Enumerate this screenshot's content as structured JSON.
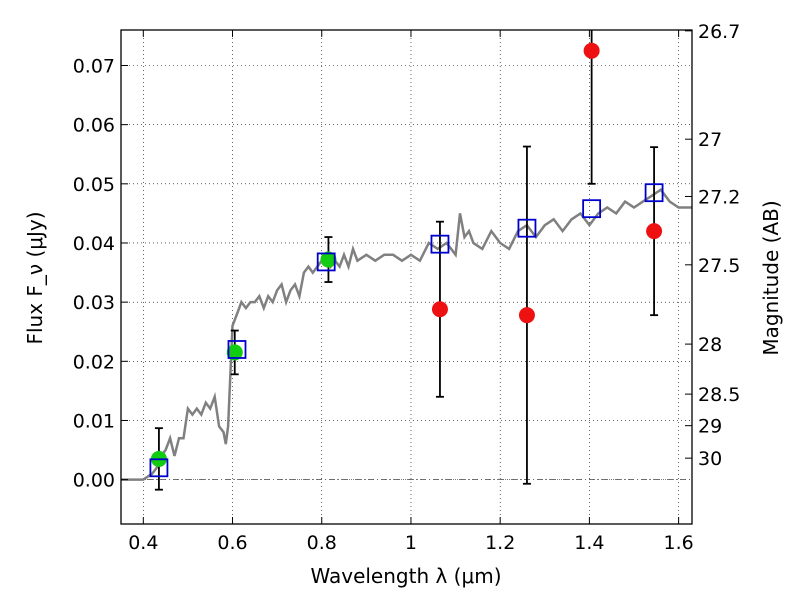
{
  "chart_data": {
    "type": "scatter",
    "xlabel": "Wavelength λ (μm)",
    "ylabel": "Flux F_ν (μJy)",
    "y2label": "Magnitude (AB)",
    "xlim": [
      0.35,
      1.63
    ],
    "ylim": [
      -0.0075,
      0.076
    ],
    "grid": true,
    "x_ticks": [
      0.4,
      0.6,
      0.8,
      1.0,
      1.2,
      1.4,
      1.6
    ],
    "x_tick_labels": [
      "0.4",
      "0.6",
      "0.8",
      "1",
      "1.2",
      "1.4",
      "1.6"
    ],
    "y_ticks": [
      0.0,
      0.01,
      0.02,
      0.03,
      0.04,
      0.05,
      0.06,
      0.07
    ],
    "y_tick_labels": [
      "0.00",
      "0.01",
      "0.02",
      "0.03",
      "0.04",
      "0.05",
      "0.06",
      "0.07"
    ],
    "mag_ticks": [
      26.7,
      27,
      27.2,
      27.5,
      28,
      28.5,
      29,
      30
    ],
    "mag_tick_labels": [
      "26.7",
      "27",
      "27.2",
      "27.5",
      "28",
      "28.5",
      "29",
      "30"
    ],
    "colors": {
      "template": "#808080",
      "green": "#11cc11",
      "red": "#ee1111",
      "model_box": "#0000cc",
      "error_bar": "#000000"
    },
    "template_spectrum": {
      "x": [
        0.35,
        0.38,
        0.4,
        0.42,
        0.43,
        0.44,
        0.45,
        0.46,
        0.47,
        0.48,
        0.49,
        0.5,
        0.51,
        0.52,
        0.53,
        0.54,
        0.55,
        0.56,
        0.57,
        0.58,
        0.585,
        0.59,
        0.6,
        0.61,
        0.62,
        0.63,
        0.64,
        0.65,
        0.66,
        0.67,
        0.68,
        0.69,
        0.7,
        0.71,
        0.72,
        0.73,
        0.74,
        0.75,
        0.76,
        0.77,
        0.78,
        0.79,
        0.8,
        0.81,
        0.82,
        0.83,
        0.84,
        0.85,
        0.86,
        0.87,
        0.88,
        0.9,
        0.92,
        0.94,
        0.96,
        0.98,
        1.0,
        1.02,
        1.04,
        1.06,
        1.08,
        1.1,
        1.11,
        1.12,
        1.13,
        1.14,
        1.16,
        1.18,
        1.2,
        1.22,
        1.24,
        1.26,
        1.28,
        1.3,
        1.32,
        1.34,
        1.36,
        1.38,
        1.4,
        1.42,
        1.44,
        1.46,
        1.48,
        1.5,
        1.52,
        1.54,
        1.56,
        1.58,
        1.6,
        1.63
      ],
      "flux": [
        0.0,
        0.0,
        0.0,
        0.001,
        0.002,
        0.004,
        0.005,
        0.007,
        0.004,
        0.007,
        0.007,
        0.012,
        0.011,
        0.012,
        0.011,
        0.013,
        0.012,
        0.014,
        0.009,
        0.008,
        0.006,
        0.009,
        0.026,
        0.028,
        0.03,
        0.029,
        0.03,
        0.03,
        0.031,
        0.029,
        0.031,
        0.03,
        0.032,
        0.033,
        0.03,
        0.032,
        0.033,
        0.031,
        0.035,
        0.036,
        0.035,
        0.036,
        0.037,
        0.038,
        0.036,
        0.037,
        0.036,
        0.038,
        0.036,
        0.039,
        0.037,
        0.038,
        0.037,
        0.038,
        0.038,
        0.037,
        0.038,
        0.037,
        0.04,
        0.039,
        0.04,
        0.038,
        0.045,
        0.041,
        0.042,
        0.04,
        0.039,
        0.042,
        0.04,
        0.039,
        0.042,
        0.043,
        0.041,
        0.043,
        0.044,
        0.042,
        0.044,
        0.045,
        0.043,
        0.045,
        0.046,
        0.045,
        0.047,
        0.046,
        0.047,
        0.048,
        0.049,
        0.047,
        0.046,
        0.046
      ]
    },
    "series": [
      {
        "marker": "circle",
        "color": "green",
        "x": [
          0.435,
          0.605,
          0.815
        ],
        "y": [
          0.0035,
          0.0215,
          0.0372
        ],
        "err": [
          0.0052,
          0.0037,
          0.0038
        ]
      },
      {
        "marker": "circle",
        "color": "red",
        "x": [
          1.065,
          1.26,
          1.405,
          1.545
        ],
        "y": [
          0.0288,
          0.0278,
          0.0725,
          0.042
        ],
        "err": [
          0.0148,
          0.0285,
          0.0225,
          0.0142
        ]
      },
      {
        "marker": "square-open",
        "color": "model_box",
        "x": [
          0.435,
          0.61,
          0.81,
          1.065,
          1.26,
          1.405,
          1.545
        ],
        "y": [
          0.002,
          0.022,
          0.0368,
          0.0398,
          0.0425,
          0.0458,
          0.0485
        ]
      }
    ]
  }
}
